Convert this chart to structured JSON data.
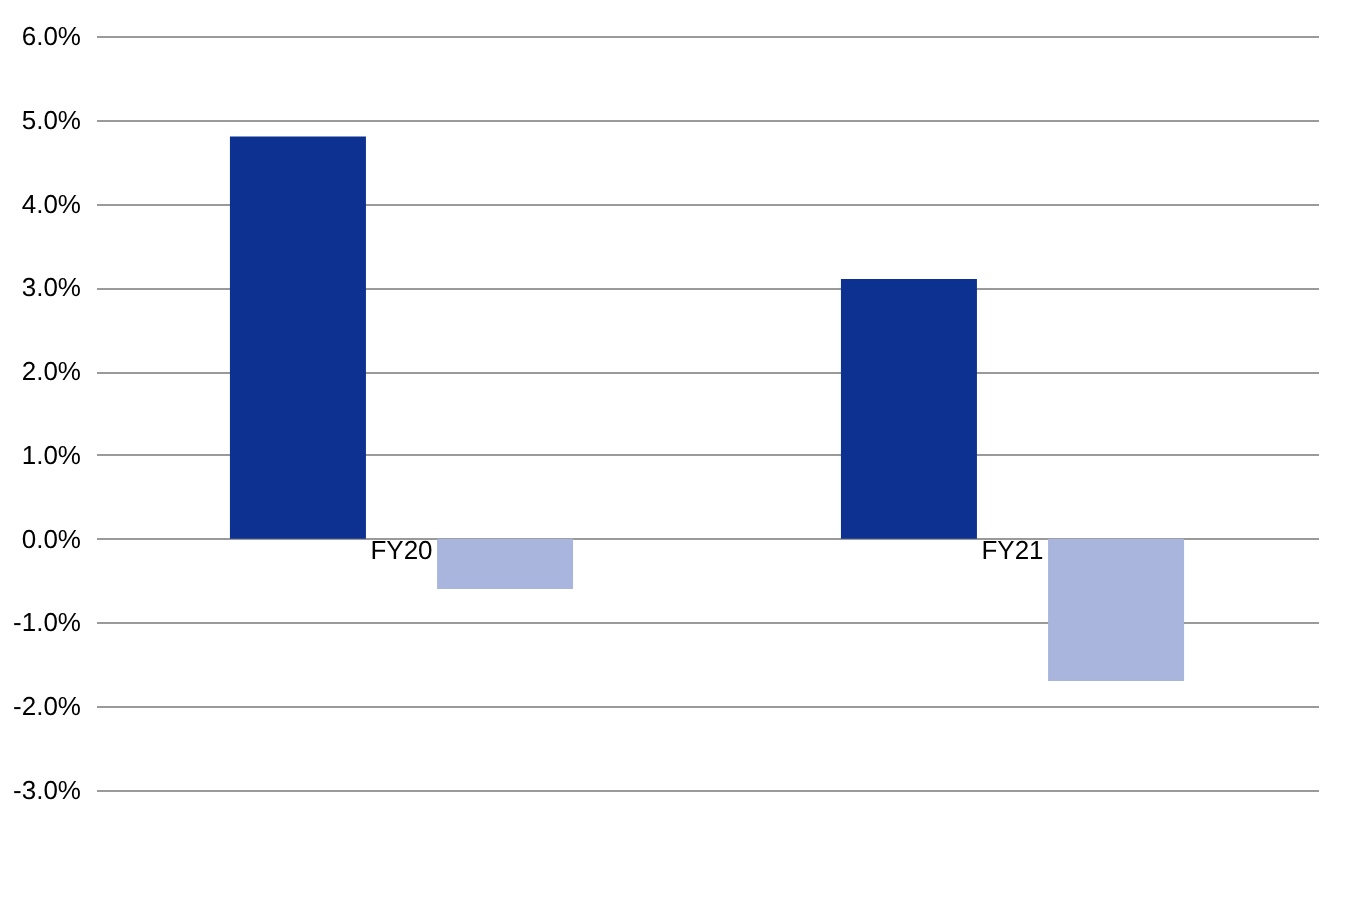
{
  "chart_data": {
    "type": "bar",
    "categories": [
      "FY20",
      "FY21"
    ],
    "series": [
      {
        "color": "#0c3191",
        "values": [
          4.8,
          3.1
        ]
      },
      {
        "color": "#a9b5dc",
        "values": [
          -0.6,
          -1.7
        ]
      }
    ],
    "ylim": [
      -3,
      6
    ],
    "yticks": [
      {
        "value": -3,
        "label": "-3.0%"
      },
      {
        "value": -2,
        "label": "-2.0%"
      },
      {
        "value": -1,
        "label": "-1.0%"
      },
      {
        "value": 0,
        "label": "0.0%"
      },
      {
        "value": 1,
        "label": "1.0%"
      },
      {
        "value": 2,
        "label": "2.0%"
      },
      {
        "value": 3,
        "label": "3.0%"
      },
      {
        "value": 4,
        "label": "4.0%"
      },
      {
        "value": 5,
        "label": "5.0%"
      },
      {
        "value": 6,
        "label": "6.0%"
      }
    ],
    "grid": "y"
  }
}
